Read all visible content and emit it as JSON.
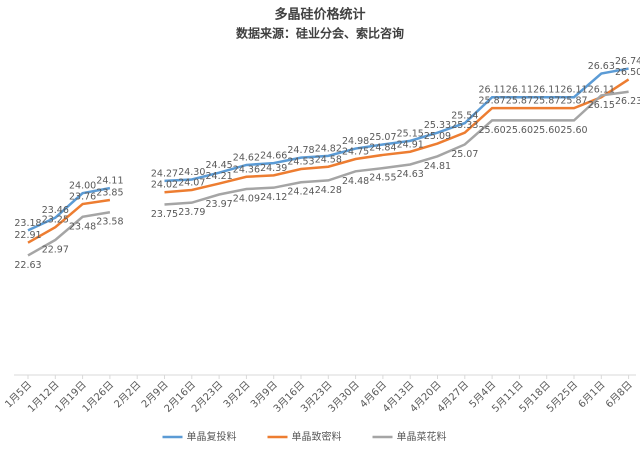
{
  "chart_data": {
    "type": "line",
    "title": "多晶硅价格统计",
    "subtitle": "数据来源：硅业分会、索比咨询",
    "categories": [
      "1月5日",
      "1月12日",
      "1月19日",
      "1月26日",
      "2月2日",
      "2月9日",
      "2月16日",
      "2月23日",
      "3月2日",
      "3月9日",
      "3月16日",
      "3月23日",
      "3月30日",
      "4月6日",
      "4月13日",
      "4月20日",
      "4月27日",
      "5月4日",
      "5月11日",
      "5月18日",
      "5月25日",
      "6月1日",
      "6月8日"
    ],
    "series": [
      {
        "name": "单晶复投料",
        "color": "#5b9bd5",
        "values": [
          23.18,
          23.46,
          24.0,
          24.11,
          null,
          24.27,
          24.3,
          24.45,
          24.62,
          24.66,
          24.78,
          24.82,
          24.98,
          25.07,
          25.15,
          25.33,
          25.54,
          26.11,
          26.11,
          26.11,
          26.11,
          26.63,
          26.74
        ],
        "value_labels": [
          "23.18",
          "23.46",
          "24.00",
          "24.11",
          null,
          "24.27",
          "24.30",
          "24.45",
          "24.62",
          "24.66",
          "24.78",
          "24.82",
          "24.98",
          "25.07",
          "25.15",
          "25.33",
          "25.54",
          "26.11",
          "26.11",
          "26.11",
          "26.11",
          "26.63",
          "26.74"
        ]
      },
      {
        "name": "单晶致密料",
        "color": "#ed7d31",
        "values": [
          22.91,
          23.25,
          23.76,
          23.85,
          null,
          24.02,
          24.07,
          24.21,
          24.36,
          24.39,
          24.53,
          24.58,
          24.75,
          24.84,
          24.91,
          25.09,
          25.33,
          25.87,
          25.87,
          25.87,
          25.87,
          26.11,
          26.5
        ],
        "value_labels": [
          "22.91",
          "23.25",
          "23.76",
          "23.85",
          null,
          "24.02",
          "24.07",
          "24.21",
          "24.36",
          "24.39",
          "24.53",
          "24.58",
          "24.75",
          "24.84",
          "24.91",
          "25.09",
          "25.33",
          "25.87",
          "25.87",
          "25.87",
          "25.87",
          "26.11",
          "26.50"
        ]
      },
      {
        "name": "单晶菜花料",
        "color": "#a5a5a5",
        "values": [
          22.63,
          22.97,
          23.48,
          23.58,
          null,
          23.75,
          23.79,
          23.97,
          24.09,
          24.12,
          24.24,
          24.28,
          24.48,
          24.55,
          24.63,
          24.81,
          25.07,
          25.6,
          25.6,
          25.6,
          25.6,
          26.15,
          26.23
        ],
        "value_labels": [
          "22.63",
          "22.97",
          "23.48",
          "23.58",
          null,
          "23.75",
          "23.79",
          "23.97",
          "24.09",
          "24.12",
          "24.24",
          "24.28",
          "24.48",
          "24.55",
          "24.63",
          "24.81",
          "25.07",
          "25.60",
          "25.60",
          "25.60",
          "25.60",
          "26.15",
          "26.23"
        ]
      }
    ],
    "ylim": [
      20,
      27.5
    ],
    "legend": "bottom"
  }
}
